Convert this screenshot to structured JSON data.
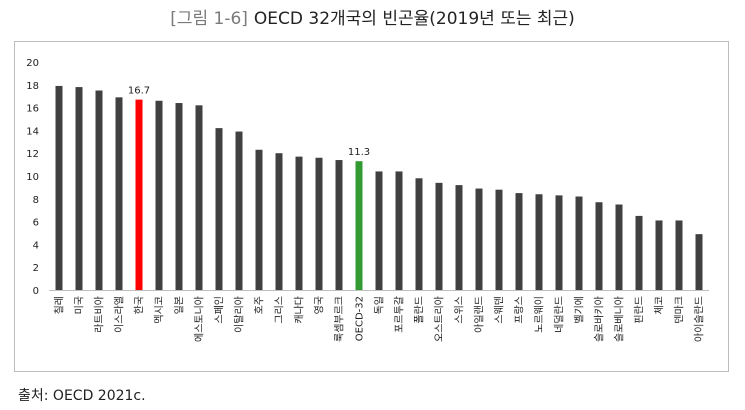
{
  "figure": {
    "number": "[그림 1-6]",
    "title": "OECD 32개국의 빈곤율(2019년 또는 최근)",
    "source": "출처: OECD 2021c."
  },
  "colors": {
    "default": "#404040",
    "korea": "#ff0000",
    "oecd": "#339933",
    "axis": "#bfbfbf"
  },
  "chart_data": {
    "type": "bar",
    "title": "OECD 32개국의 빈곤율(2019년 또는 최근)",
    "xlabel": "",
    "ylabel": "",
    "ylim": [
      0,
      20
    ],
    "yticks": [
      0,
      2,
      4,
      6,
      8,
      10,
      12,
      14,
      16,
      18,
      20
    ],
    "grid": false,
    "categories": [
      "칠레",
      "미국",
      "라트비아",
      "이스라엘",
      "한국",
      "멕시코",
      "일본",
      "에스토니아",
      "스페인",
      "이탈리아",
      "호주",
      "그리스",
      "캐나다",
      "영국",
      "룩셈부르크",
      "OECD-32",
      "독일",
      "포르투갈",
      "폴란드",
      "오스트리아",
      "스위스",
      "아일랜드",
      "스웨덴",
      "프랑스",
      "노르웨이",
      "네덜란드",
      "벨기에",
      "슬로바키아",
      "슬로베니아",
      "핀란드",
      "체코",
      "덴마크",
      "아이슬란드"
    ],
    "values": [
      17.9,
      17.8,
      17.5,
      16.9,
      16.7,
      16.6,
      16.4,
      16.2,
      14.2,
      13.9,
      12.3,
      12.0,
      11.7,
      11.6,
      11.4,
      11.3,
      10.4,
      10.4,
      9.8,
      9.4,
      9.2,
      8.9,
      8.8,
      8.5,
      8.4,
      8.3,
      8.2,
      7.7,
      7.5,
      6.5,
      6.1,
      6.1,
      4.9
    ],
    "data_labels": [
      {
        "category": "한국",
        "label": "16.7"
      },
      {
        "category": "OECD-32",
        "label": "11.3"
      }
    ],
    "highlight": {
      "한국": "#ff0000",
      "OECD-32": "#339933"
    }
  }
}
